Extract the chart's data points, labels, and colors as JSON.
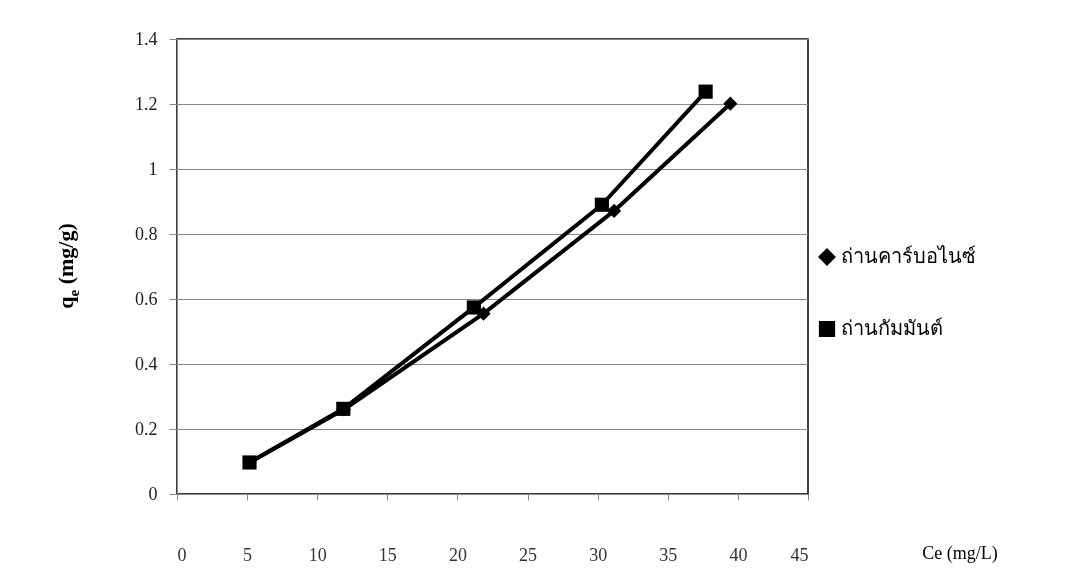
{
  "chart_data": {
    "type": "line",
    "annotations": [
      "Ce (mg/L)"
    ],
    "ylabel": "q$_{e}$ (mg/g)",
    "xlim": [
      0,
      45
    ],
    "xticks": [
      0,
      5,
      10,
      15,
      20,
      25,
      30,
      35,
      40,
      45
    ],
    "ylim": [
      0,
      1.4
    ],
    "yticks": [
      0,
      0.2,
      0.4,
      0.6,
      0.8,
      1,
      1.2,
      1.4
    ],
    "grid": "y",
    "legend": "right",
    "series": [
      {
        "name": "ถ่านคาร์บอไนซ์",
        "color": "#000000",
        "marker": "diamond",
        "x": [
          5.17,
          11.9,
          21.86,
          31.17,
          39.46
        ],
        "values": [
          0.097,
          0.26,
          0.555,
          0.871,
          1.201
        ]
      },
      {
        "name": "ถ่านกัมมันต์",
        "color": "#000000",
        "marker": "square",
        "x": [
          5.17,
          11.86,
          21.17,
          30.3,
          37.7
        ],
        "values": [
          0.097,
          0.262,
          0.574,
          0.89,
          1.238
        ]
      }
    ]
  }
}
